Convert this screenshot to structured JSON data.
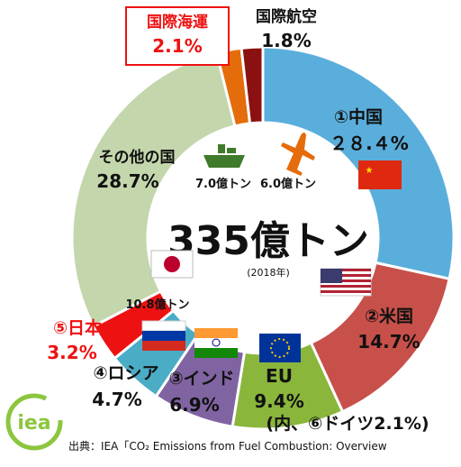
{
  "chart_data": {
    "type": "donut",
    "title": "",
    "center_total": "335億トン",
    "center_year": "(2018年)",
    "segments": [
      {
        "name": "①中国",
        "label": "①中国",
        "value_label": "２８.４%",
        "value": 28.4,
        "color": "#5aaedc",
        "label_color": "#111111"
      },
      {
        "name": "②米国",
        "label": "②米国",
        "value_label": "14.7%",
        "value": 14.7,
        "color": "#c8504a",
        "label_color": "#111111"
      },
      {
        "name": "EU",
        "label": "EU",
        "value_label": "9.4%",
        "value": 9.4,
        "color": "#8ab63c",
        "label_color": "#111111",
        "note": "(内、⑥ドイツ2.1%)"
      },
      {
        "name": "③インド",
        "label": "③インド",
        "value_label": "6.9%",
        "value": 6.9,
        "color": "#8064a2",
        "label_color": "#111111"
      },
      {
        "name": "④ロシア",
        "label": "④ロシア",
        "value_label": "4.7%",
        "value": 4.7,
        "color": "#4bacc6",
        "label_color": "#111111"
      },
      {
        "name": "⑤日本",
        "label": "⑤日本",
        "value_label": "3.2%",
        "value": 3.2,
        "color": "#ee1111",
        "label_color": "#ee1111"
      },
      {
        "name": "その他の国",
        "label": "その他の国",
        "value_label": "28.7%",
        "value": 28.7,
        "color": "#c4d6ac",
        "label_color": "#111111"
      },
      {
        "name": "国際海運",
        "label": "国際海運",
        "value_label": "2.1%",
        "value": 2.1,
        "color": "#e46c0a",
        "label_color": "#ee1111"
      },
      {
        "name": "国際航空",
        "label": "国際航空",
        "value_label": "1.8%",
        "value": 1.8,
        "color": "#8b1010",
        "label_color": "#111111"
      }
    ],
    "annotations": {
      "japan_inner": "10.8億トン",
      "ship_amount": "7.0億トン",
      "plane_amount": "6.0億トン"
    }
  },
  "source": "出典：IEA「CO₂ Emissions from Fuel Combustion: Overview",
  "logo_text": "iea",
  "icons": [
    "ship-icon",
    "airplane-icon",
    "china-flag-icon",
    "usa-flag-icon",
    "eu-flag-icon",
    "india-flag-icon",
    "russia-flag-icon",
    "japan-flag-icon"
  ]
}
